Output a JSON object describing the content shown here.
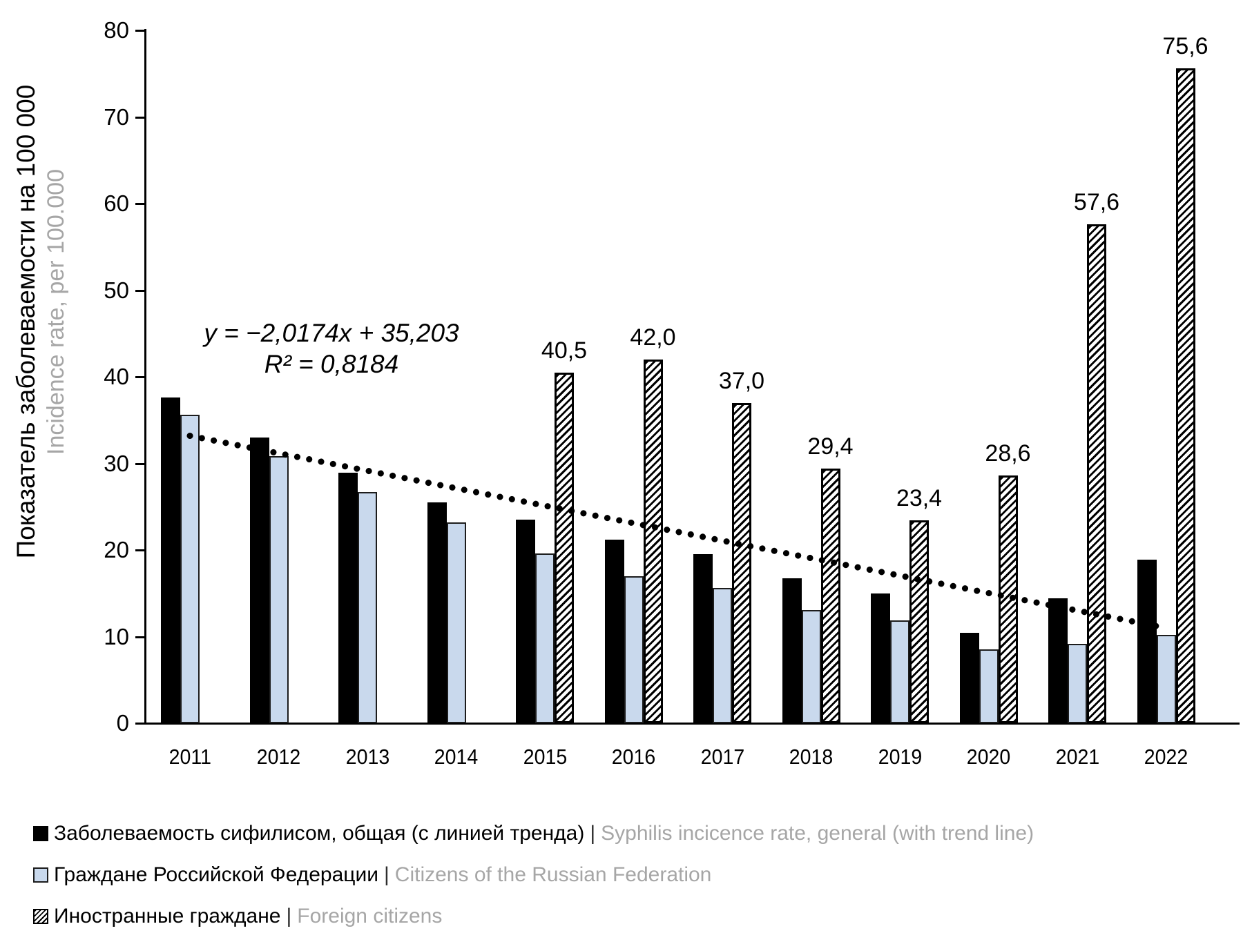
{
  "figure": {
    "y_axis_title_ru": "Показатель заболеваемости на 100 000",
    "y_axis_title_en": "Incidence rate, per 100.000",
    "equation_line1": "y = −2,0174x + 35,203",
    "equation_line2": "R² = 0,8184"
  },
  "legend": {
    "separator": "|",
    "items": [
      {
        "marker": "solid-black",
        "ru": "Заболеваемость сифилисом, общая (с линией тренда)",
        "en": "Syphilis incicence rate, general (with trend line)"
      },
      {
        "marker": "blue-square",
        "ru": "Граждане Российской Федерации",
        "en": "Citizens of the Russian Federation"
      },
      {
        "marker": "hatched-square",
        "ru": "Иностранные граждане",
        "en": "Foreign citizens"
      }
    ]
  },
  "chart_data": {
    "type": "bar",
    "title": "",
    "categories": [
      "2011",
      "2012",
      "2013",
      "2014",
      "2015",
      "2016",
      "2017",
      "2018",
      "2019",
      "2020",
      "2021",
      "2022"
    ],
    "series": [
      {
        "name_ru": "Заболеваемость сифилисом, общая (с линией тренда)",
        "name_en": "Syphilis incicence rate, general (with trend line)",
        "style": "solid-black",
        "values": [
          37.6,
          33.0,
          28.9,
          25.5,
          23.5,
          21.2,
          19.5,
          16.7,
          15.0,
          10.4,
          14.4,
          18.9
        ]
      },
      {
        "name_ru": "Граждане Российской Федерации",
        "name_en": "Citizens of the Russian Federation",
        "style": "light-blue",
        "values": [
          35.6,
          30.8,
          26.7,
          23.2,
          19.6,
          17.0,
          15.6,
          13.1,
          11.9,
          8.5,
          9.2,
          10.2
        ]
      },
      {
        "name_ru": "Иностранные граждане",
        "name_en": "Foreign citizens",
        "style": "diagonal-hatch",
        "values": [
          null,
          null,
          null,
          null,
          40.5,
          42.0,
          37.0,
          29.4,
          23.4,
          28.6,
          57.6,
          75.6
        ],
        "data_labels": [
          "",
          "",
          "",
          "",
          "40,5",
          "42,0",
          "37,0",
          "29,4",
          "23,4",
          "28,6",
          "57,6",
          "75,6"
        ]
      }
    ],
    "trendline": {
      "applies_to_series": "Заболеваемость сифилисом, общая",
      "slope": -2.0174,
      "intercept": 35.203,
      "r_squared": 0.8184,
      "equation_text": "y = −2,0174x + 35,203",
      "r_squared_text": "R² = 0,8184",
      "style": "dotted-black"
    },
    "y_axis": {
      "min": 0,
      "max": 80,
      "tick_step": 10,
      "tick_labels": [
        "0",
        "10",
        "20",
        "30",
        "40",
        "50",
        "60",
        "70",
        "80"
      ]
    },
    "x_axis": {
      "label": "",
      "tick_labels": [
        "2011",
        "2012",
        "2013",
        "2014",
        "2015",
        "2016",
        "2017",
        "2018",
        "2019",
        "2020",
        "2021",
        "2022"
      ]
    },
    "grid": false,
    "legend_position": "bottom-left",
    "colors": {
      "black_bar": "#000000",
      "blue_bar": "#c9d9ed",
      "hatch_stroke": "#000000",
      "secondary_text_gray": "#a6a6a6",
      "trend_dot": "#000000"
    }
  }
}
